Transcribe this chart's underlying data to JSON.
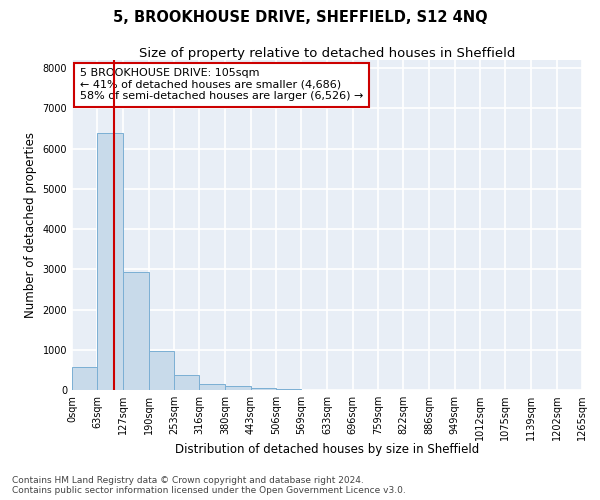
{
  "title": "5, BROOKHOUSE DRIVE, SHEFFIELD, S12 4NQ",
  "subtitle": "Size of property relative to detached houses in Sheffield",
  "xlabel": "Distribution of detached houses by size in Sheffield",
  "ylabel": "Number of detached properties",
  "bar_color": "#c8daea",
  "bar_edge_color": "#7bafd4",
  "bin_edges": [
    0,
    63,
    127,
    190,
    253,
    316,
    380,
    443,
    506,
    569,
    633,
    696,
    759,
    822,
    886,
    949,
    1012,
    1075,
    1139,
    1202,
    1265
  ],
  "bar_heights": [
    570,
    6380,
    2920,
    970,
    370,
    155,
    90,
    60,
    18,
    7,
    4,
    2,
    1,
    1,
    0,
    0,
    0,
    0,
    0,
    0
  ],
  "ylim": [
    0,
    8200
  ],
  "yticks": [
    0,
    1000,
    2000,
    3000,
    4000,
    5000,
    6000,
    7000,
    8000
  ],
  "vline_x": 105,
  "vline_color": "#cc0000",
  "annotation_text": "5 BROOKHOUSE DRIVE: 105sqm\n← 41% of detached houses are smaller (4,686)\n58% of semi-detached houses are larger (6,526) →",
  "annotation_box_color": "#cc0000",
  "tick_labels": [
    "0sqm",
    "63sqm",
    "127sqm",
    "190sqm",
    "253sqm",
    "316sqm",
    "380sqm",
    "443sqm",
    "506sqm",
    "569sqm",
    "633sqm",
    "696sqm",
    "759sqm",
    "822sqm",
    "886sqm",
    "949sqm",
    "1012sqm",
    "1075sqm",
    "1139sqm",
    "1202sqm",
    "1265sqm"
  ],
  "footnote": "Contains HM Land Registry data © Crown copyright and database right 2024.\nContains public sector information licensed under the Open Government Licence v3.0.",
  "background_color": "#e8eef6",
  "grid_color": "#ffffff",
  "title_fontsize": 10.5,
  "subtitle_fontsize": 9.5,
  "axis_label_fontsize": 8.5,
  "tick_fontsize": 7,
  "annotation_fontsize": 8,
  "footnote_fontsize": 6.5
}
